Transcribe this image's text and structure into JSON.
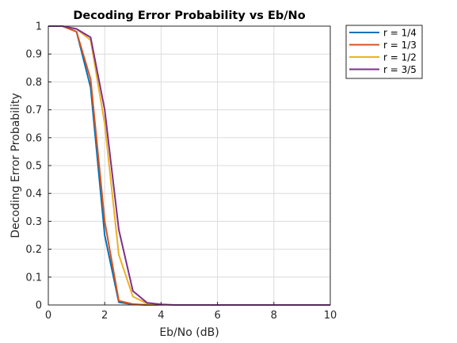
{
  "chart_data": {
    "type": "line",
    "title": "Decoding Error Probability vs Eb/No",
    "xlabel": "Eb/No (dB)",
    "ylabel": "Decoding Error Probability",
    "xlim": [
      0,
      10
    ],
    "ylim": [
      0,
      1
    ],
    "xticks": [
      0,
      2,
      4,
      6,
      8,
      10
    ],
    "yticks": [
      0,
      0.1,
      0.2,
      0.3,
      0.4,
      0.5,
      0.6,
      0.7,
      0.8,
      0.9,
      1
    ],
    "xtick_labels": [
      "0",
      "2",
      "4",
      "6",
      "8",
      "10"
    ],
    "ytick_labels": [
      "0",
      "0.1",
      "0.2",
      "0.3",
      "0.4",
      "0.5",
      "0.6",
      "0.7",
      "0.8",
      "0.9",
      "1"
    ],
    "grid": true,
    "legend_position": "outside top-right",
    "x": [
      0,
      0.5,
      1,
      1.5,
      2,
      2.5,
      3,
      3.5,
      4,
      4.5,
      5,
      6,
      7,
      8,
      9,
      10
    ],
    "series": [
      {
        "name": "r = 1/4",
        "color": "#0072BD",
        "values": [
          1,
          1,
          0.98,
          0.78,
          0.25,
          0.01,
          0.002,
          0,
          0,
          0,
          0,
          0,
          0,
          0,
          0,
          0
        ]
      },
      {
        "name": "r = 1/3",
        "color": "#D95319",
        "values": [
          1,
          1,
          0.98,
          0.81,
          0.3,
          0.015,
          0.003,
          0,
          0,
          0,
          0,
          0,
          0,
          0,
          0,
          0
        ]
      },
      {
        "name": "r = 1/2",
        "color": "#EDB120",
        "values": [
          1,
          1,
          0.99,
          0.95,
          0.65,
          0.18,
          0.03,
          0.005,
          0,
          0,
          0,
          0,
          0,
          0,
          0,
          0
        ]
      },
      {
        "name": "r = 3/5",
        "color": "#7E2F8E",
        "values": [
          1,
          1,
          0.99,
          0.96,
          0.7,
          0.27,
          0.05,
          0.008,
          0.002,
          0,
          0,
          0,
          0,
          0,
          0,
          0
        ]
      }
    ]
  }
}
